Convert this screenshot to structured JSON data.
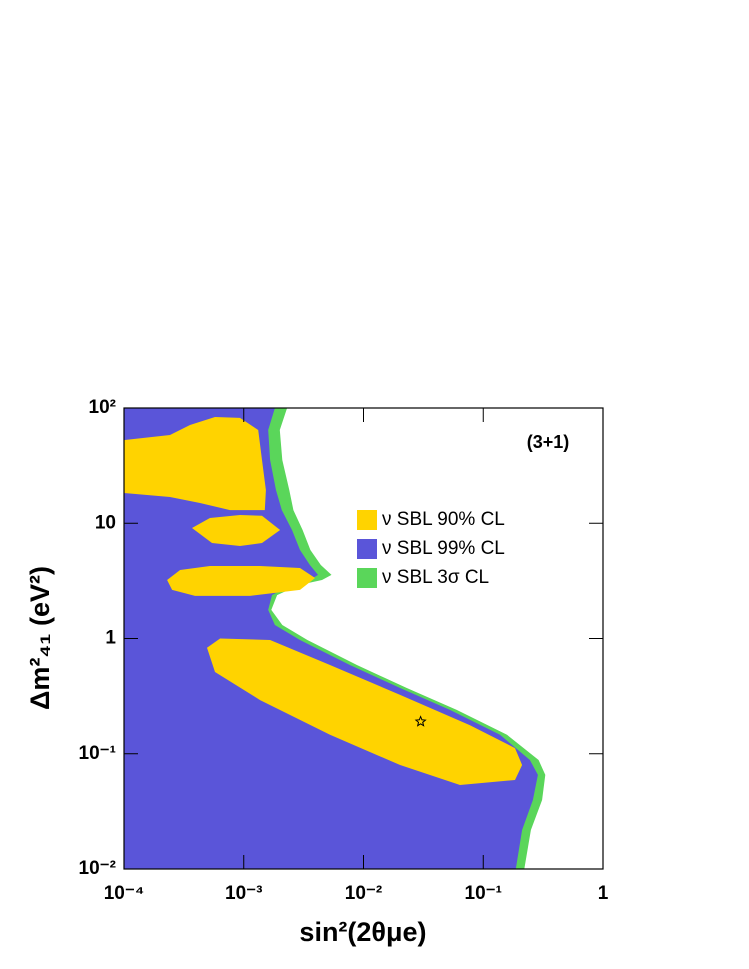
{
  "chart_data": {
    "type": "contour",
    "x_label": "sin²(2θμe)",
    "y_label": "Δm²₄₁ (eV²)",
    "annotation": "(3+1)",
    "xscale": "log",
    "yscale": "log",
    "xlim": [
      0.0001,
      1
    ],
    "ylim": [
      0.01,
      100
    ],
    "xticks": [
      {
        "value": 0.0001,
        "label": "10⁻⁴"
      },
      {
        "value": 0.001,
        "label": "10⁻³"
      },
      {
        "value": 0.01,
        "label": "10⁻²"
      },
      {
        "value": 0.1,
        "label": "10⁻¹"
      },
      1
    ],
    "yticks": [
      {
        "value": 0.01,
        "label": "10⁻²"
      },
      {
        "value": 0.1,
        "label": "10⁻¹"
      },
      1,
      10,
      {
        "value": 100,
        "label": "10²"
      }
    ],
    "legend_loc": "center right",
    "series": [
      {
        "name": "ν SBL 90% CL",
        "color": "#ffd300",
        "x": [
          0.0001,
          0.000242,
          0.000356,
          0.000575,
          0.000931,
          0.00132,
          0.00142,
          0.00153,
          0.0015,
          0.000767,
          0.000431,
          0.000242,
          0.0001,
          null,
          0.00037,
          0.000522,
          0.000931,
          0.00142,
          0.00201,
          0.00142,
          0.000931,
          0.000543,
          null,
          0.000229,
          0.000294,
          0.000522,
          0.00137,
          0.00295,
          0.00394,
          0.00295,
          0.00113,
          0.000392,
          0.000252,
          null,
          0.000493,
          0.000634,
          0.00166,
          0.00525,
          0.0202,
          0.0775,
          0.184,
          0.211,
          0.184,
          0.064,
          0.0202,
          0.00525,
          0.00137,
          0.000575
        ],
        "y": [
          52.7,
          58.3,
          71.2,
          83.6,
          82,
          64.4,
          35.4,
          19.4,
          13.0,
          13.0,
          15.0,
          16.9,
          18.3,
          null,
          9.1,
          11.1,
          11.8,
          11.6,
          8.74,
          6.74,
          6.35,
          6.74,
          null,
          3.22,
          3.93,
          4.26,
          4.26,
          4.09,
          3.35,
          2.64,
          2.34,
          2.34,
          2.64,
          null,
          0.83,
          1.0,
          0.97,
          0.589,
          0.324,
          0.177,
          0.112,
          0.0798,
          0.0592,
          0.0536,
          0.0798,
          0.146,
          0.292,
          0.512
        ]
      },
      {
        "name": "ν SBL 99% CL",
        "color": "#5a55d9",
        "x": [
          0.0001,
          0.00182,
          0.0016,
          0.00166,
          0.00186,
          0.00208,
          0.00253,
          0.00295,
          0.00357,
          0.00417,
          0.00357,
          0.00243,
          0.00172,
          0.0016,
          0.00182,
          0.00295,
          0.0077,
          0.0202,
          0.0527,
          0.138,
          0.245,
          0.286,
          0.26,
          0.211,
          0.187,
          0.0001
        ],
        "y": [
          100,
          100,
          64.4,
          35.4,
          19.4,
          13.0,
          8.74,
          5.86,
          4.34,
          3.56,
          3.22,
          2.91,
          2.38,
          1.77,
          1.31,
          0.97,
          0.589,
          0.372,
          0.24,
          0.146,
          0.0883,
          0.0655,
          0.0397,
          0.0218,
          0.01,
          0.01
        ]
      },
      {
        "name": "ν SBL 3σ CL",
        "color": "#5ad65a",
        "x": [
          0.0001,
          0.0023,
          0.002,
          0.0021,
          0.0024,
          0.0026,
          0.0031,
          0.0036,
          0.0044,
          0.0054,
          0.0045,
          0.0029,
          0.0019,
          0.0017,
          0.0021,
          0.0034,
          0.0088,
          0.023,
          0.06,
          0.158,
          0.29,
          0.33,
          0.31,
          0.25,
          0.22,
          0.0001
        ],
        "y": [
          100,
          100,
          64.4,
          35.4,
          19.4,
          13.0,
          8.74,
          5.86,
          4.34,
          3.56,
          3.22,
          2.91,
          2.38,
          1.77,
          1.31,
          0.97,
          0.589,
          0.372,
          0.24,
          0.146,
          0.0883,
          0.0655,
          0.0397,
          0.0218,
          0.01,
          0.01
        ]
      }
    ],
    "best_fit": {
      "x": 0.03,
      "y": 0.19,
      "marker": "star"
    }
  }
}
